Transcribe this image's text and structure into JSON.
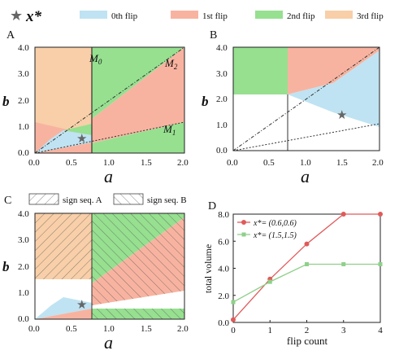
{
  "colors": {
    "flip0": "#bfe3f2",
    "flip1": "#f8b3a0",
    "flip2": "#96e090",
    "flip3": "#f8cfa8",
    "lineRed": "#e05a5a",
    "lineGreen": "#8fd08a",
    "star": "#666666"
  },
  "top_legend": {
    "xstar_label": "x*",
    "items": [
      "0th flip",
      "1st flip",
      "2nd flip",
      "3rd flip"
    ]
  },
  "mid_legend": {
    "items": [
      "sign seq. A",
      "sign seq. B"
    ]
  },
  "panels": {
    "A": {
      "letter": "A",
      "xlabel": "a",
      "ylabel": "b",
      "xticks": [
        "0.0",
        "0.5",
        "1.0",
        "1.5",
        "2.0"
      ],
      "yticks": [
        "0.0",
        "1.0",
        "2.0",
        "3.0",
        "4.0"
      ],
      "labels": {
        "m0": "M",
        "m0sub": "0",
        "m1": "M",
        "m1sub": "1",
        "m2": "M",
        "m2sub": "2"
      }
    },
    "B": {
      "letter": "B",
      "xlabel": "a",
      "ylabel": "b",
      "xticks": [
        "0.0",
        "0.5",
        "1.0",
        "1.5",
        "2.0"
      ],
      "yticks": [
        "0.0",
        "1.0",
        "2.0",
        "3.0",
        "4.0"
      ]
    },
    "C": {
      "letter": "C",
      "xlabel": "a",
      "ylabel": "b",
      "xticks": [
        "0.0",
        "0.5",
        "1.0",
        "1.5",
        "2.0"
      ],
      "yticks": [
        "0.0",
        "1.0",
        "2.0",
        "3.0",
        "4.0"
      ]
    },
    "D": {
      "letter": "D"
    }
  },
  "chart_data": [
    {
      "type": "area",
      "panel": "A",
      "xlim": [
        0,
        2
      ],
      "ylim": [
        0,
        4
      ],
      "xlabel": "a",
      "ylabel": "b",
      "boundaries": {
        "M0": "a = 0.73",
        "M1": "b = 0.5a",
        "M2": "b = 2a"
      },
      "star": [
        0.6,
        0.6
      ]
    },
    {
      "type": "area",
      "panel": "B",
      "xlim": [
        0,
        2
      ],
      "ylim": [
        0,
        4
      ],
      "xlabel": "a",
      "ylabel": "b",
      "star": [
        1.5,
        1.5
      ]
    },
    {
      "type": "area",
      "panel": "C",
      "xlim": [
        0,
        2
      ],
      "ylim": [
        0,
        4
      ],
      "xlabel": "a",
      "ylabel": "b",
      "star": [
        0.6,
        0.6
      ]
    },
    {
      "type": "line",
      "panel": "D",
      "xlabel": "flip count",
      "ylabel": "total volume",
      "x": [
        0,
        1,
        2,
        3,
        4
      ],
      "xlim": [
        0,
        4
      ],
      "ylim": [
        0,
        8
      ],
      "xticks": [
        "0",
        "1",
        "2",
        "3",
        "4"
      ],
      "yticks": [
        "0.0",
        "2.0",
        "4.0",
        "6.0",
        "8.0"
      ],
      "series": [
        {
          "name": "x*= (0.6,0.6)",
          "values": [
            0.2,
            3.2,
            5.8,
            8.0,
            8.0
          ]
        },
        {
          "name": "x*= (1.5,1.5)",
          "values": [
            1.5,
            3.0,
            4.3,
            4.3,
            4.3
          ]
        }
      ]
    }
  ]
}
